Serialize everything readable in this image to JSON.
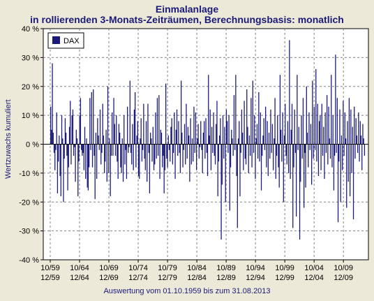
{
  "title_line1": "Einmalanlage",
  "title_line2": "in rollierenden 3-Monats-Zeiträumen, Berechnungsbasis: monatlich",
  "footer": "Auswertung vom 01.10.1959 bis zum 31.08.2013",
  "colors": {
    "background": "#ece9d8",
    "plot_bg": "#ffffff",
    "series": "#1a1a7a",
    "grid": "#808080"
  },
  "chart_data": {
    "type": "bar",
    "ylabel": "Wertzuwachs kumuliert",
    "ylim": [
      -40,
      40
    ],
    "y_ticks": [
      "40 %",
      "30 %",
      "20 %",
      "10 %",
      "0 %",
      "-10 %",
      "-20 %",
      "-30 %",
      "-40 %"
    ],
    "x_ticks_top": [
      "10/59",
      "10/64",
      "10/69",
      "10/74",
      "10/79",
      "10/84",
      "10/89",
      "10/94",
      "10/99",
      "10/04",
      "10/09"
    ],
    "x_ticks_bottom": [
      "12/59",
      "12/64",
      "12/69",
      "12/74",
      "12/79",
      "12/84",
      "12/89",
      "12/94",
      "12/99",
      "12/04",
      "12/09"
    ],
    "grid": true,
    "legend_position": "top-left",
    "series": [
      {
        "name": "DAX",
        "start": "12/1959",
        "end": "08/2013",
        "frequency": "monthly",
        "values": [
          13,
          5,
          28,
          4,
          -3,
          -9,
          -2,
          11,
          -17,
          -6,
          3,
          -11,
          -18,
          10,
          2,
          -20,
          -5,
          9,
          4,
          -4,
          -16,
          -8,
          6,
          15,
          -7,
          10,
          12,
          -4,
          -1,
          -13,
          5,
          2,
          -18,
          -6,
          10,
          16,
          -2,
          -4,
          -3,
          -9,
          6,
          -12,
          2,
          -15,
          -16,
          -8,
          16,
          -2,
          18,
          -8,
          19,
          -4,
          -19,
          4,
          -12,
          9,
          3,
          -2,
          12,
          -7,
          -3,
          14,
          3,
          -10,
          -6,
          5,
          -13,
          20,
          -10,
          2,
          -18,
          -4,
          11,
          -4,
          16,
          7,
          -4,
          10,
          -6,
          -12,
          7,
          4,
          -8,
          -10,
          2,
          -13,
          10,
          -7,
          -2,
          -12,
          13,
          -3,
          -1,
          22,
          -3,
          -7,
          7,
          -9,
          12,
          18,
          -8,
          3,
          8,
          -11,
          -12,
          2,
          9,
          -6,
          -2,
          14,
          -5,
          -9,
          8,
          -13,
          14,
          -3,
          -17,
          4,
          2,
          -6,
          6,
          -9,
          -7,
          11,
          -5,
          16,
          -4,
          17,
          -12,
          5,
          4,
          -8,
          -4,
          -17,
          -9,
          21,
          -5,
          -8,
          3,
          -2,
          -6,
          6,
          9,
          -7,
          -3,
          11,
          -12,
          5,
          12,
          -4,
          8,
          -3,
          -10,
          22,
          4,
          -8,
          -2,
          7,
          -7,
          14,
          -5,
          6,
          3,
          -13,
          9,
          -7,
          2,
          -6,
          13,
          -3,
          11,
          -9,
          2,
          7,
          -5,
          -1,
          8,
          -2,
          -10,
          4,
          8,
          -5,
          9,
          -3,
          -11,
          24,
          3,
          12,
          -9,
          6,
          -3,
          11,
          -4,
          -7,
          7,
          15,
          -18,
          -6,
          3,
          9,
          -33,
          -14,
          10,
          -5,
          6,
          -20,
          12,
          8,
          -3,
          10,
          -23,
          -8,
          5,
          2,
          -4,
          17,
          -2,
          24,
          -11,
          -29,
          2,
          8,
          -18,
          -3,
          12,
          4,
          -9,
          15,
          -5,
          -7,
          19,
          6,
          -10,
          3,
          -4,
          16,
          -8,
          22,
          -3,
          10,
          -12,
          2,
          7,
          -5,
          18,
          -6,
          11,
          -16,
          -4,
          3,
          9,
          -2,
          13,
          -8,
          8,
          -11,
          4,
          -5,
          12,
          -3,
          7,
          -9,
          2,
          16,
          -12,
          -4,
          10,
          -8,
          -15,
          24,
          5,
          -6,
          11,
          -20,
          3,
          14,
          -4,
          -7,
          8,
          -10,
          36,
          -12,
          5,
          14,
          -29,
          -8,
          12,
          -3,
          -25,
          24,
          -2,
          6,
          -33,
          -13,
          10,
          -5,
          16,
          -22,
          -3,
          -15,
          20,
          4,
          -8,
          11,
          -2,
          7,
          -14,
          22,
          -5,
          13,
          -2,
          26,
          -6,
          14,
          -11,
          8,
          10,
          -9,
          14,
          -4,
          6,
          -12,
          11,
          -3,
          17,
          -7,
          13,
          2,
          -5,
          24,
          -8,
          10,
          -16,
          -4,
          31,
          -3,
          16,
          -27,
          -6,
          12,
          -20,
          3,
          -9,
          15,
          -4,
          11,
          2,
          -22,
          8,
          -13,
          16,
          -18,
          12,
          -10,
          6,
          -26,
          13,
          -5,
          9,
          3,
          -3,
          11,
          -6,
          8,
          3,
          -9,
          7,
          2,
          -4
        ]
      }
    ]
  }
}
